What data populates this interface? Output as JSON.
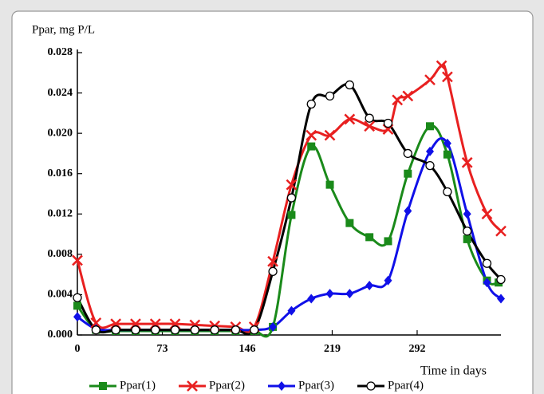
{
  "chart_data": {
    "type": "line",
    "y_label": "Ppar, mg P/L",
    "x_label": "Time in days",
    "xlim": [
      0,
      364
    ],
    "xticks": [
      0,
      73,
      146,
      219,
      292
    ],
    "ylim": [
      0,
      0.028
    ],
    "yticks": [
      {
        "value": 0,
        "label": "0.000"
      },
      {
        "value": 0.004,
        "label": "0.004"
      },
      {
        "value": 0.008,
        "label": "0.008"
      },
      {
        "value": 0.012,
        "label": "0.012"
      },
      {
        "value": 0.016,
        "label": "0.016"
      },
      {
        "value": 0.02,
        "label": "0.020"
      },
      {
        "value": 0.024,
        "label": "0.024"
      },
      {
        "value": 0.028,
        "label": "0.028"
      }
    ],
    "series": [
      {
        "name": "Ppar(1)",
        "color": "#1a8a1a",
        "marker": "square",
        "x": [
          0,
          16,
          33,
          50,
          67,
          84,
          101,
          118,
          136,
          152,
          168,
          184,
          201,
          217,
          234,
          251,
          267,
          284,
          303,
          318,
          335,
          352,
          362
        ],
        "values": [
          0.0029,
          0.0005,
          0.0004,
          0.0004,
          0.0004,
          0.0004,
          0.0004,
          0.0004,
          0.0004,
          0.0004,
          0.0008,
          0.0119,
          0.0187,
          0.0149,
          0.0111,
          0.0097,
          0.0093,
          0.016,
          0.0207,
          0.0179,
          0.0095,
          0.0054,
          0.0052
        ]
      },
      {
        "name": "Ppar(2)",
        "color": "#e82020",
        "marker": "cross",
        "x": [
          0,
          16,
          33,
          50,
          67,
          84,
          101,
          118,
          136,
          152,
          168,
          184,
          201,
          217,
          234,
          251,
          267,
          275,
          284,
          303,
          313,
          318,
          335,
          352,
          364
        ],
        "values": [
          0.0074,
          0.0012,
          0.0011,
          0.0011,
          0.0011,
          0.0011,
          0.001,
          0.0009,
          0.0008,
          0.0008,
          0.0073,
          0.0149,
          0.0198,
          0.0198,
          0.0214,
          0.0207,
          0.0204,
          0.0233,
          0.0237,
          0.0253,
          0.0267,
          0.0256,
          0.0171,
          0.012,
          0.0103
        ]
      },
      {
        "name": "Ppar(3)",
        "color": "#1010e8",
        "marker": "diamond",
        "x": [
          0,
          16,
          33,
          50,
          67,
          84,
          101,
          118,
          136,
          152,
          168,
          184,
          201,
          217,
          234,
          251,
          267,
          284,
          303,
          318,
          335,
          352,
          364
        ],
        "values": [
          0.0018,
          0.0006,
          0.0005,
          0.0005,
          0.0005,
          0.0005,
          0.0005,
          0.0005,
          0.0005,
          0.0005,
          0.0008,
          0.0024,
          0.0036,
          0.0041,
          0.0041,
          0.0049,
          0.0054,
          0.0123,
          0.0182,
          0.019,
          0.012,
          0.0052,
          0.0036
        ]
      },
      {
        "name": "Ppar(4)",
        "color": "#000000",
        "marker": "circle",
        "x": [
          0,
          16,
          33,
          50,
          67,
          84,
          101,
          118,
          136,
          152,
          168,
          184,
          201,
          217,
          234,
          251,
          267,
          284,
          303,
          318,
          335,
          352,
          364
        ],
        "values": [
          0.0037,
          0.0005,
          0.0005,
          0.0005,
          0.0005,
          0.0005,
          0.0005,
          0.0005,
          0.0005,
          0.0005,
          0.0063,
          0.0136,
          0.0229,
          0.0237,
          0.0248,
          0.0215,
          0.021,
          0.018,
          0.0168,
          0.0142,
          0.0103,
          0.0071,
          0.0055
        ]
      }
    ]
  }
}
